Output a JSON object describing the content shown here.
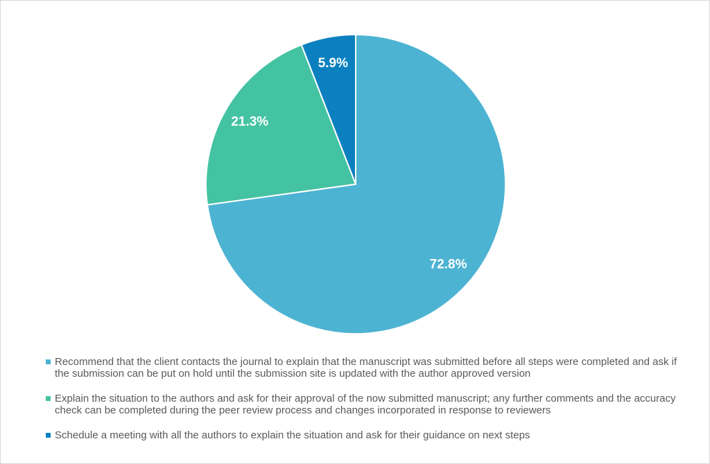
{
  "chart_data": {
    "type": "pie",
    "categories": [
      "Recommend that the client contacts the journal to explain that the manuscript was submitted before all steps were completed and ask if the submission can be put on hold until the submission site is updated with the author approved version",
      "Explain the situation to the authors and ask for their approval of the now submitted manuscript; any further comments and the accuracy check can be completed during the peer review process and changes incorporated in response to reviewers",
      "Schedule a meeting with all the authors to explain the situation and ask for their guidance on next steps"
    ],
    "values": [
      72.8,
      21.3,
      5.9
    ],
    "value_labels": [
      "72.8%",
      "21.3%",
      "5.9%"
    ],
    "colors": [
      "#4db3d2",
      "#44c3a3",
      "#0b80c0"
    ],
    "legend": "bottom"
  }
}
